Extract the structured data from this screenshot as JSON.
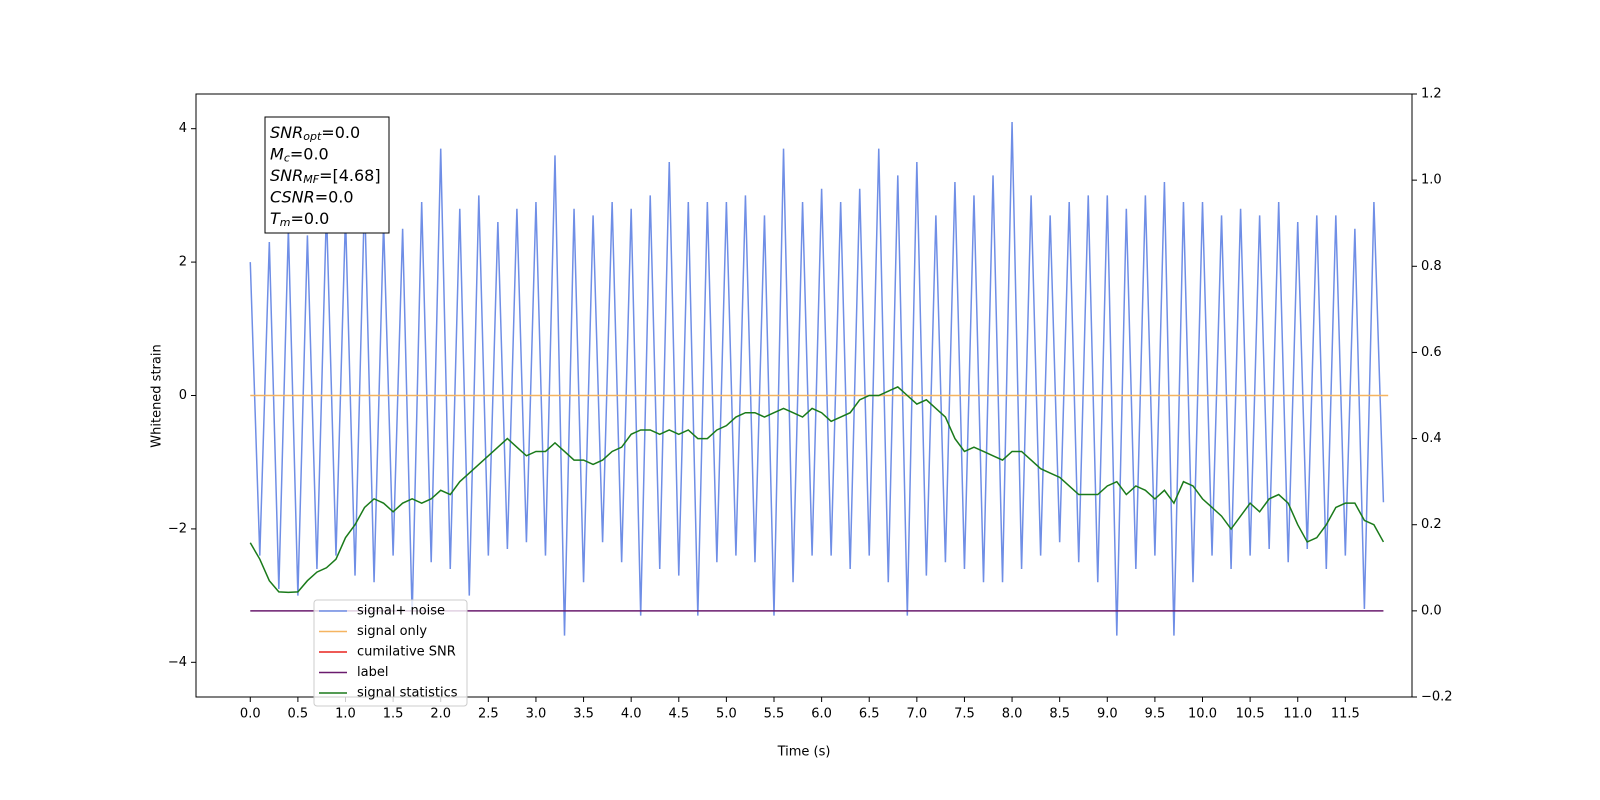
{
  "chart_data": {
    "type": "line",
    "xlabel": "Time (s)",
    "ylabel": "Whitened strain",
    "x": [
      0.0,
      0.1,
      0.2,
      0.3,
      0.4,
      0.5,
      0.6,
      0.7,
      0.8,
      0.9,
      1.0,
      1.1,
      1.2,
      1.3,
      1.4,
      1.5,
      1.6,
      1.7,
      1.8,
      1.9,
      2.0,
      2.1,
      2.2,
      2.3,
      2.4,
      2.5,
      2.6,
      2.7,
      2.8,
      2.9,
      3.0,
      3.1,
      3.2,
      3.3,
      3.4,
      3.5,
      3.6,
      3.7,
      3.8,
      3.9,
      4.0,
      4.1,
      4.2,
      4.3,
      4.4,
      4.5,
      4.6,
      4.7,
      4.8,
      4.9,
      5.0,
      5.1,
      5.2,
      5.3,
      5.4,
      5.5,
      5.6,
      5.7,
      5.8,
      5.9,
      6.0,
      6.1,
      6.2,
      6.3,
      6.4,
      6.5,
      6.6,
      6.7,
      6.8,
      6.9,
      7.0,
      7.1,
      7.2,
      7.3,
      7.4,
      7.5,
      7.6,
      7.7,
      7.8,
      7.9,
      8.0,
      8.1,
      8.2,
      8.3,
      8.4,
      8.5,
      8.6,
      8.7,
      8.8,
      8.9,
      9.0,
      9.1,
      9.2,
      9.3,
      9.4,
      9.5,
      9.6,
      9.7,
      9.8,
      9.9,
      10.0,
      10.1,
      10.2,
      10.3,
      10.4,
      10.5,
      10.6,
      10.7,
      10.8,
      10.9,
      11.0,
      11.1,
      11.2,
      11.3,
      11.4,
      11.5,
      11.6,
      11.7,
      11.8,
      11.9
    ],
    "series": [
      {
        "name": "signal+ noise",
        "color": "#6f8ee6",
        "values": [
          2.0,
          -2.4,
          2.3,
          -2.9,
          2.5,
          -3.0,
          2.4,
          -2.6,
          2.8,
          -2.4,
          2.7,
          -2.7,
          3.0,
          -2.8,
          2.6,
          -2.4,
          2.5,
          -3.3,
          2.9,
          -2.5,
          3.7,
          -2.6,
          2.8,
          -3.0,
          3.0,
          -2.4,
          2.6,
          -2.3,
          2.8,
          -2.2,
          2.9,
          -2.4,
          3.6,
          -3.6,
          2.8,
          -2.8,
          2.7,
          -2.2,
          2.9,
          -2.5,
          2.8,
          -3.3,
          3.0,
          -2.6,
          3.5,
          -2.7,
          2.9,
          -3.3,
          2.9,
          -2.5,
          2.9,
          -2.4,
          3.0,
          -2.5,
          2.7,
          -3.3,
          3.7,
          -2.8,
          2.9,
          -2.4,
          3.1,
          -2.4,
          2.9,
          -2.6,
          3.1,
          -2.4,
          3.7,
          -2.8,
          3.3,
          -3.3,
          3.5,
          -2.7,
          2.7,
          -2.5,
          3.2,
          -2.6,
          3.0,
          -2.8,
          3.3,
          -2.8,
          4.1,
          -2.6,
          3.0,
          -2.4,
          2.7,
          -2.2,
          2.9,
          -2.5,
          3.0,
          -2.8,
          3.0,
          -3.6,
          2.8,
          -2.6,
          3.0,
          -2.4,
          3.2,
          -3.6,
          2.9,
          -2.8,
          2.9,
          -2.4,
          2.7,
          -2.6,
          2.8,
          -2.4,
          2.7,
          -2.3,
          2.9,
          -2.5,
          2.6,
          -2.3,
          2.7,
          -2.6,
          2.7,
          -2.4,
          2.5,
          -3.2,
          2.9,
          -1.6
        ]
      },
      {
        "name": "signal only",
        "color": "#f5b461",
        "x": [
          0.0,
          11.95
        ],
        "values": [
          0,
          0
        ]
      },
      {
        "name": "cumilative SNR",
        "color": "#e8231f"
      },
      {
        "name": "label",
        "color": "#6a1b6e",
        "axis": "y2",
        "x": [
          0.0,
          11.9
        ],
        "values": [
          0,
          0
        ]
      },
      {
        "name": "signal statistics",
        "color": "#1a7a1a",
        "axis": "y2",
        "values": [
          0.158,
          0.12,
          0.07,
          0.044,
          0.043,
          0.044,
          0.07,
          0.09,
          0.1,
          0.12,
          0.17,
          0.2,
          0.24,
          0.26,
          0.25,
          0.23,
          0.25,
          0.26,
          0.25,
          0.26,
          0.28,
          0.27,
          0.3,
          0.32,
          0.34,
          0.36,
          0.38,
          0.4,
          0.38,
          0.36,
          0.37,
          0.37,
          0.39,
          0.37,
          0.35,
          0.35,
          0.34,
          0.35,
          0.37,
          0.38,
          0.41,
          0.42,
          0.42,
          0.41,
          0.42,
          0.41,
          0.42,
          0.4,
          0.4,
          0.42,
          0.43,
          0.45,
          0.46,
          0.46,
          0.45,
          0.46,
          0.47,
          0.46,
          0.45,
          0.47,
          0.46,
          0.44,
          0.45,
          0.46,
          0.49,
          0.5,
          0.5,
          0.51,
          0.52,
          0.5,
          0.48,
          0.49,
          0.47,
          0.45,
          0.4,
          0.37,
          0.38,
          0.37,
          0.36,
          0.35,
          0.37,
          0.37,
          0.35,
          0.33,
          0.32,
          0.31,
          0.29,
          0.27,
          0.27,
          0.27,
          0.29,
          0.3,
          0.27,
          0.29,
          0.28,
          0.26,
          0.28,
          0.25,
          0.3,
          0.29,
          0.26,
          0.24,
          0.22,
          0.19,
          0.22,
          0.25,
          0.23,
          0.26,
          0.27,
          0.25,
          0.2,
          0.16,
          0.17,
          0.2,
          0.24,
          0.25,
          0.25,
          0.21,
          0.2,
          0.16
        ]
      }
    ],
    "xlim": [
      -0.57,
      12.2
    ],
    "ylim": [
      -4.52,
      4.52
    ],
    "y2lim": [
      -0.2,
      1.2
    ],
    "xticks": [
      {
        "value": 0.0,
        "label": "0.0"
      },
      {
        "value": 0.5,
        "label": "0.5"
      },
      {
        "value": 1.0,
        "label": "1.0"
      },
      {
        "value": 1.5,
        "label": "1.5"
      },
      {
        "value": 2.0,
        "label": "2.0"
      },
      {
        "value": 2.5,
        "label": "2.5"
      },
      {
        "value": 3.0,
        "label": "3.0"
      },
      {
        "value": 3.5,
        "label": "3.5"
      },
      {
        "value": 4.0,
        "label": "4.0"
      },
      {
        "value": 4.5,
        "label": "4.5"
      },
      {
        "value": 5.0,
        "label": "5.0"
      },
      {
        "value": 5.5,
        "label": "5.5"
      },
      {
        "value": 6.0,
        "label": "6.0"
      },
      {
        "value": 6.5,
        "label": "6.5"
      },
      {
        "value": 7.0,
        "label": "7.0"
      },
      {
        "value": 7.5,
        "label": "7.5"
      },
      {
        "value": 8.0,
        "label": "8.0"
      },
      {
        "value": 8.5,
        "label": "8.5"
      },
      {
        "value": 9.0,
        "label": "9.0"
      },
      {
        "value": 9.5,
        "label": "9.5"
      },
      {
        "value": 10.0,
        "label": "10.0"
      },
      {
        "value": 10.5,
        "label": "10.5"
      },
      {
        "value": 11.0,
        "label": "11.0"
      },
      {
        "value": 11.5,
        "label": "11.5"
      }
    ],
    "yticks": [
      {
        "value": -4,
        "label": "−4"
      },
      {
        "value": -2,
        "label": "−2"
      },
      0,
      2,
      4
    ],
    "y2ticks": [
      {
        "value": -0.2,
        "label": "−0.2"
      },
      {
        "value": 0.0,
        "label": "0.0"
      },
      {
        "value": 0.2,
        "label": "0.2"
      },
      {
        "value": 0.4,
        "label": "0.4"
      },
      {
        "value": 0.6,
        "label": "0.6"
      },
      {
        "value": 0.8,
        "label": "0.8"
      },
      {
        "value": 1.0,
        "label": "1.0"
      },
      {
        "value": 1.2,
        "label": "1.2"
      }
    ],
    "grid": false,
    "legend": "lower left",
    "annotation": [
      {
        "symbol": "SNR",
        "sub": "opt",
        "text": "=0.0"
      },
      {
        "symbol": "M",
        "sub": "c",
        "text": "=0.0"
      },
      {
        "symbol": "SNR",
        "sub": "MF",
        "text": "=[4.68]"
      },
      {
        "symbol": "CSNR",
        "text": "=0.0"
      },
      {
        "symbol": "T",
        "sub": "m",
        "text": "=0.0"
      }
    ]
  }
}
